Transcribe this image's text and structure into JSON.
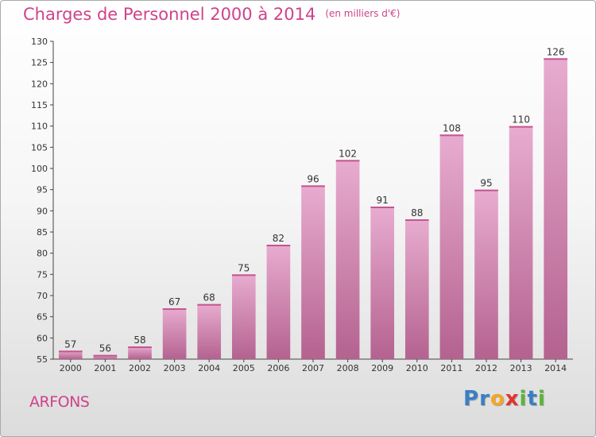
{
  "header": {
    "title": "Charges de Personnel 2000 à 2014",
    "subtitle": "(en milliers d'€)"
  },
  "footer": {
    "commune": "ARFONS",
    "logo_letters": [
      {
        "char": "P",
        "color": "#3a7fc4"
      },
      {
        "char": "r",
        "color": "#3a7fc4"
      },
      {
        "char": "o",
        "color": "#f5a623"
      },
      {
        "char": "x",
        "color": "#e2342d"
      },
      {
        "char": "i",
        "color": "#5bb539"
      },
      {
        "char": "t",
        "color": "#3a7fc4"
      },
      {
        "char": "i",
        "color": "#5bb539"
      }
    ]
  },
  "colors": {
    "bar_top": "#e8acd0",
    "bar_bottom": "#b4628f",
    "accent": "#d0428a"
  },
  "chart_data": {
    "type": "bar",
    "title": "Charges de Personnel 2000 à 2014",
    "subtitle": "(en milliers d'€)",
    "categories": [
      "2000",
      "2001",
      "2002",
      "2003",
      "2004",
      "2005",
      "2006",
      "2007",
      "2008",
      "2009",
      "2010",
      "2011",
      "2012",
      "2013",
      "2014"
    ],
    "values": [
      57,
      56,
      58,
      67,
      68,
      75,
      82,
      96,
      102,
      91,
      88,
      108,
      95,
      110,
      126
    ],
    "ylim": [
      55,
      130
    ],
    "yticks": [
      55,
      60,
      65,
      70,
      75,
      80,
      85,
      90,
      95,
      100,
      105,
      110,
      115,
      120,
      125,
      130
    ],
    "grid": false,
    "xlabel": "",
    "ylabel": ""
  }
}
